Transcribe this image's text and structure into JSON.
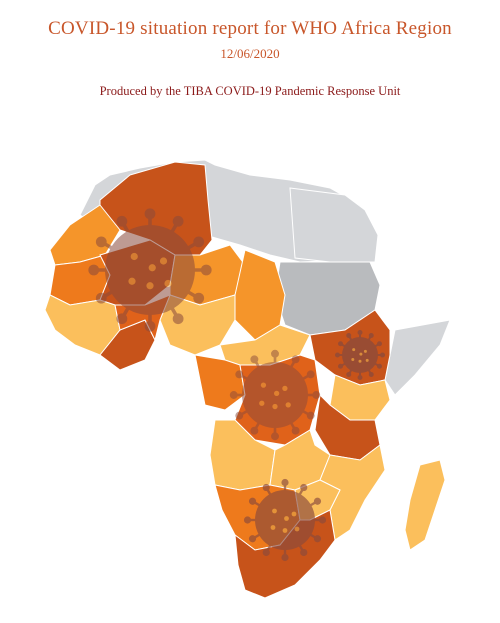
{
  "report": {
    "title": "COVID-19 situation report for WHO Africa Region",
    "date": "12/06/2020",
    "producer": "Produced by the TIBA COVID-19 Pandemic Response Unit"
  },
  "map": {
    "colors": {
      "no_data": "#d4d6d9",
      "no_data_dark": "#b9bbbe",
      "light": "#fbbf5c",
      "medium": "#f5952a",
      "high": "#ee7a1c",
      "very_high": "#e0621a",
      "dark": "#c7531a",
      "virus": "#8a4a3c"
    }
  }
}
